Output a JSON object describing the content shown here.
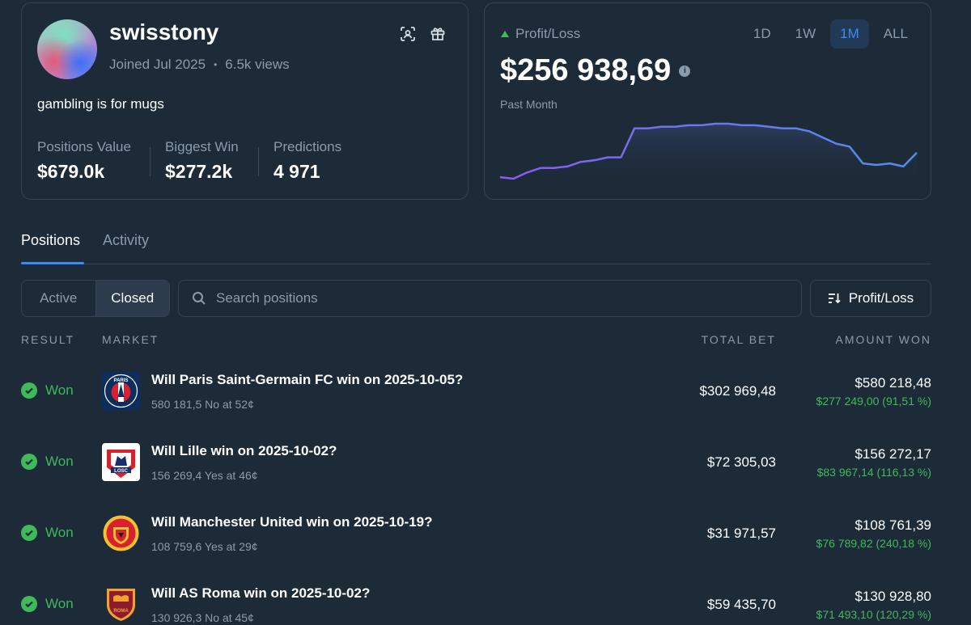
{
  "profile": {
    "username": "swisstony",
    "joined": "Joined Jul 2025",
    "views": "6.5k views",
    "bio": "gambling is for mugs",
    "stats": [
      {
        "label": "Positions Value",
        "value": "$679.0k"
      },
      {
        "label": "Biggest Win",
        "value": "$277.2k"
      },
      {
        "label": "Predictions",
        "value": "4 971"
      }
    ]
  },
  "pnl": {
    "title": "Profit/Loss",
    "ranges": [
      "1D",
      "1W",
      "1M",
      "ALL"
    ],
    "active_range": "1M",
    "value": "$256 938,69",
    "period": "Past Month",
    "chart": [
      3,
      2,
      6,
      9,
      9,
      10,
      13,
      14,
      16,
      16,
      35,
      35,
      36,
      36,
      37,
      37,
      38,
      38,
      37,
      37,
      36,
      35,
      35,
      33,
      29,
      25,
      23,
      12,
      11,
      12,
      10,
      19
    ]
  },
  "tabs": {
    "positions": "Positions",
    "activity": "Activity"
  },
  "filters": {
    "active": "Active",
    "closed": "Closed",
    "search_placeholder": "Search positions",
    "sort_label": "Profit/Loss"
  },
  "table": {
    "headers": {
      "result": "RESULT",
      "market": "MARKET",
      "total_bet": "TOTAL BET",
      "amount_won": "AMOUNT WON"
    },
    "rows": [
      {
        "result": "Won",
        "title": "Will Paris Saint-Germain FC win on 2025-10-05?",
        "detail": "580 181,5 No at 52¢",
        "total_bet": "$302 969,48",
        "amount_won": "$580 218,48",
        "profit": "$277 249,00 (91,51 %)",
        "logo": "psg-logo-icon"
      },
      {
        "result": "Won",
        "title": "Will Lille win on 2025-10-02?",
        "detail": "156 269,4 Yes at 46¢",
        "total_bet": "$72 305,03",
        "amount_won": "$156 272,17",
        "profit": "$83 967,14 (116,13 %)",
        "logo": "lille-logo-icon"
      },
      {
        "result": "Won",
        "title": "Will Manchester United win on 2025-10-19?",
        "detail": "108 759,6 Yes at 29¢",
        "total_bet": "$31 971,57",
        "amount_won": "$108 761,39",
        "profit": "$76 789,82 (240,18 %)",
        "logo": "manchester-united-logo-icon"
      },
      {
        "result": "Won",
        "title": "Will AS Roma win on 2025-10-02?",
        "detail": "130 926,3 No at 45¢",
        "total_bet": "$59 435,70",
        "amount_won": "$130 928,80",
        "profit": "$71 493,10 (120,29 %)",
        "logo": "as-roma-logo-icon"
      }
    ]
  },
  "colors": {
    "accent": "#3b8cf2",
    "positive": "#3fb95a",
    "background": "#1d2b39",
    "chart_line": "#7a6cf0"
  }
}
